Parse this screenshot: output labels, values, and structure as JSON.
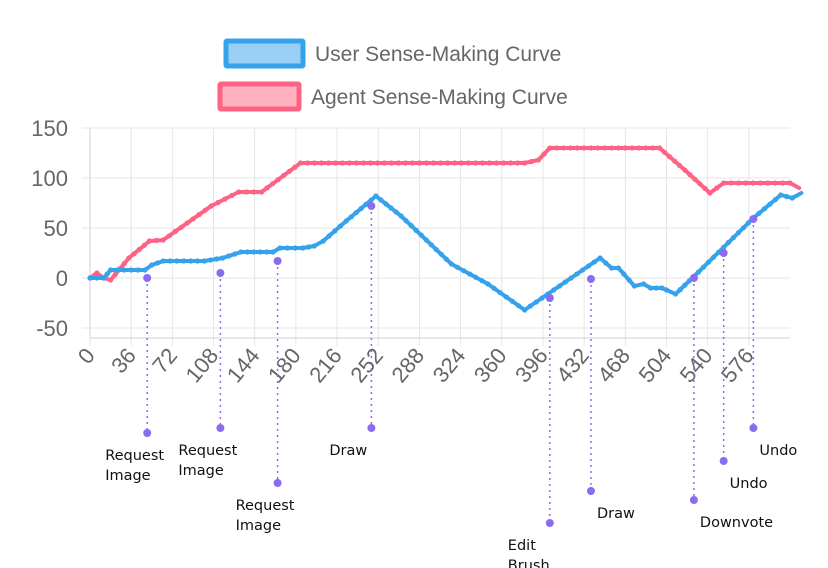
{
  "chart_data": {
    "type": "line",
    "title": "",
    "xlabel": "",
    "ylabel": "",
    "xlim": [
      0,
      612
    ],
    "ylim": [
      -60,
      150
    ],
    "x_ticks": [
      "0",
      "36",
      "72",
      "108",
      "144",
      "180",
      "216",
      "252",
      "288",
      "324",
      "360",
      "396",
      "432",
      "468",
      "504",
      "540",
      "576"
    ],
    "y_ticks": [
      "150",
      "100",
      "50",
      "0",
      "-50"
    ],
    "grid": true,
    "legend_position": "top",
    "series": [
      {
        "name": "User Sense-Making Curve",
        "color": "#36a2eb",
        "fill": "#9ad0f5",
        "points": [
          [
            0,
            0
          ],
          [
            12,
            0
          ],
          [
            18,
            8
          ],
          [
            30,
            8
          ],
          [
            48,
            8
          ],
          [
            54,
            13
          ],
          [
            64,
            17
          ],
          [
            100,
            17
          ],
          [
            116,
            20
          ],
          [
            132,
            26
          ],
          [
            160,
            26
          ],
          [
            166,
            30
          ],
          [
            186,
            30
          ],
          [
            196,
            32
          ],
          [
            204,
            37
          ],
          [
            224,
            57
          ],
          [
            250,
            82
          ],
          [
            272,
            62
          ],
          [
            316,
            14
          ],
          [
            348,
            -6
          ],
          [
            380,
            -32
          ],
          [
            446,
            20
          ],
          [
            456,
            10
          ],
          [
            462,
            10
          ],
          [
            476,
            -8
          ],
          [
            484,
            -6
          ],
          [
            490,
            -10
          ],
          [
            500,
            -10
          ],
          [
            504,
            -12
          ],
          [
            512,
            -16
          ],
          [
            532,
            6
          ],
          [
            580,
            60
          ],
          [
            604,
            83
          ],
          [
            614,
            80
          ],
          [
            622,
            85
          ]
        ]
      },
      {
        "name": "Agent Sense-Making Curve",
        "color": "#ff6384",
        "fill": "#ffb1c1",
        "points": [
          [
            0,
            0
          ],
          [
            6,
            5
          ],
          [
            12,
            0
          ],
          [
            18,
            -2
          ],
          [
            34,
            20
          ],
          [
            52,
            37
          ],
          [
            64,
            38
          ],
          [
            106,
            72
          ],
          [
            130,
            86
          ],
          [
            150,
            86
          ],
          [
            184,
            115
          ],
          [
            380,
            115
          ],
          [
            392,
            118
          ],
          [
            402,
            130
          ],
          [
            498,
            130
          ],
          [
            520,
            108
          ],
          [
            542,
            85
          ],
          [
            554,
            95
          ],
          [
            612,
            95
          ],
          [
            620,
            90
          ]
        ]
      }
    ],
    "annotations": [
      {
        "x": 50,
        "y": 0,
        "label_y": -155,
        "lines": [
          "Request",
          "Image"
        ]
      },
      {
        "x": 114,
        "y": 5,
        "label_y": -150,
        "lines": [
          "Request",
          "Image"
        ]
      },
      {
        "x": 164,
        "y": 17,
        "label_y": -205,
        "lines": [
          "Request",
          "Image"
        ]
      },
      {
        "x": 246,
        "y": 72,
        "label_y": -150,
        "lines": [
          "Draw"
        ]
      },
      {
        "x": 402,
        "y": -20,
        "label_y": -245,
        "lines": [
          "Edit",
          "Brush"
        ]
      },
      {
        "x": 438,
        "y": -1,
        "label_y": -213,
        "lines": [
          "Draw"
        ]
      },
      {
        "x": 528,
        "y": 0,
        "label_y": -222,
        "lines": [
          "Downvote"
        ]
      },
      {
        "x": 554,
        "y": 25,
        "label_y": -183,
        "lines": [
          "Undo"
        ]
      },
      {
        "x": 580,
        "y": 59,
        "label_y": -150,
        "lines": [
          "Undo"
        ]
      }
    ]
  }
}
